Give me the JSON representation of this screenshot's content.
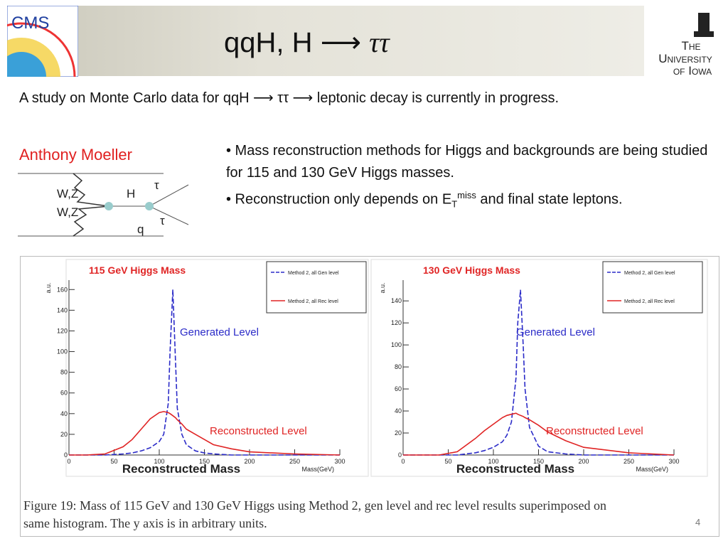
{
  "header": {
    "title": "qqH, H",
    "title_arrow": "⟶",
    "title_tau": "ττ",
    "logo_left": "CMS",
    "logo_right": [
      "The",
      "University",
      "of Iowa"
    ]
  },
  "intro": "A study on Monte Carlo data for qqH ⟶ ττ ⟶ leptonic decay is currently in progress.",
  "author": "Anthony Moeller",
  "diagram": {
    "labels": [
      "W,Z",
      "W,Z",
      "H",
      "τ",
      "τ",
      "q"
    ]
  },
  "bullets": [
    "• Mass reconstruction methods for Higgs and backgrounds are being studied for 115 and 130 GeV Higgs masses.",
    {
      "parts": [
        "• Reconstruction only depends on E",
        "T",
        "miss",
        " and final state leptons."
      ]
    }
  ],
  "chart_data": [
    {
      "type": "line",
      "title": "115 GeV Higgs Mass",
      "y_label": "a.u.",
      "x_label": "Reconstructed Mass",
      "x_unit_label": "Mass(GeV)",
      "annotations": [
        "Generated Level",
        "Reconstructed Level"
      ],
      "x": [
        0,
        20,
        40,
        60,
        70,
        80,
        90,
        100,
        105,
        110,
        112,
        115,
        118,
        120,
        125,
        130,
        140,
        150,
        160,
        180,
        200,
        250,
        300
      ],
      "series": [
        {
          "name": "Method 2, all Gen level",
          "color": "#2b2bc8",
          "dashed": true,
          "values": [
            0,
            0,
            0,
            1,
            2,
            4,
            7,
            13,
            20,
            50,
            100,
            160,
            90,
            45,
            20,
            10,
            4,
            2,
            1,
            0,
            0,
            0,
            0
          ]
        },
        {
          "name": "Method 2, all Rec level",
          "color": "#e02424",
          "dashed": false,
          "values": [
            0,
            0,
            1,
            8,
            15,
            25,
            35,
            41,
            42,
            41,
            40,
            38,
            36,
            34,
            30,
            25,
            20,
            15,
            10,
            6,
            3,
            1,
            0
          ]
        }
      ],
      "xlim": [
        0,
        300
      ],
      "ylim": [
        0,
        165
      ],
      "xticks": [
        0,
        50,
        100,
        150,
        200,
        250,
        300
      ],
      "yticks": [
        0,
        20,
        40,
        60,
        80,
        100,
        120,
        140,
        160
      ]
    },
    {
      "type": "line",
      "title": "130 GeV Higgs Mass",
      "y_label": "a.u.",
      "x_label": "Reconstructed Mass",
      "x_unit_label": "Mass(GeV)",
      "annotations": [
        "Generated Level",
        "Reconstructed Level"
      ],
      "x": [
        0,
        20,
        40,
        60,
        80,
        90,
        100,
        110,
        115,
        120,
        125,
        127,
        130,
        133,
        135,
        140,
        150,
        160,
        180,
        200,
        250,
        300
      ],
      "series": [
        {
          "name": "Method 2, all Gen level",
          "color": "#2b2bc8",
          "dashed": true,
          "values": [
            0,
            0,
            0,
            0,
            2,
            4,
            7,
            12,
            18,
            30,
            70,
            120,
            150,
            100,
            60,
            25,
            8,
            3,
            1,
            0,
            0,
            0
          ]
        },
        {
          "name": "Method 2, all Rec level",
          "color": "#e02424",
          "dashed": false,
          "values": [
            0,
            0,
            0,
            3,
            15,
            22,
            28,
            34,
            36,
            37,
            38,
            37,
            36,
            35,
            34,
            32,
            27,
            21,
            13,
            7,
            2,
            0
          ]
        }
      ],
      "xlim": [
        0,
        300
      ],
      "ylim": [
        0,
        155
      ],
      "xticks": [
        0,
        50,
        100,
        150,
        200,
        250,
        300
      ],
      "yticks": [
        0,
        20,
        40,
        60,
        80,
        100,
        120,
        140
      ]
    }
  ],
  "caption": [
    "Figure 19: Mass of 115 GeV and 130 GeV Higgs using Method 2, gen level and rec level results superimposed on",
    "same histogram. The y axis is in arbitrary units."
  ],
  "page_number": "4"
}
